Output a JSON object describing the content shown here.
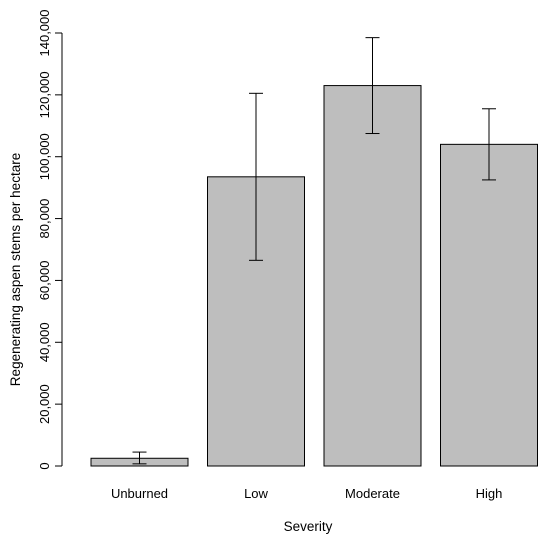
{
  "chart_data": {
    "type": "bar",
    "title": "",
    "xlabel": "Severity",
    "ylabel": "Regenerating aspen stems per hectare",
    "categories": [
      "Unburned",
      "Low",
      "Moderate",
      "High"
    ],
    "values": [
      2500,
      93500,
      123000,
      104000
    ],
    "error_low": [
      700,
      66500,
      107500,
      92500
    ],
    "error_high": [
      4500,
      120500,
      138500,
      115500
    ],
    "ylim": [
      0,
      140000
    ],
    "yticks": [
      0,
      20000,
      40000,
      60000,
      80000,
      100000,
      120000,
      140000
    ],
    "ytick_labels": [
      "0",
      "20,000",
      "40,000",
      "60,000",
      "80,000",
      "100,000",
      "120,000",
      "140,000"
    ],
    "grid": false,
    "legend": "none",
    "bar_color": "#bebebe",
    "edge_color": "#000000"
  }
}
